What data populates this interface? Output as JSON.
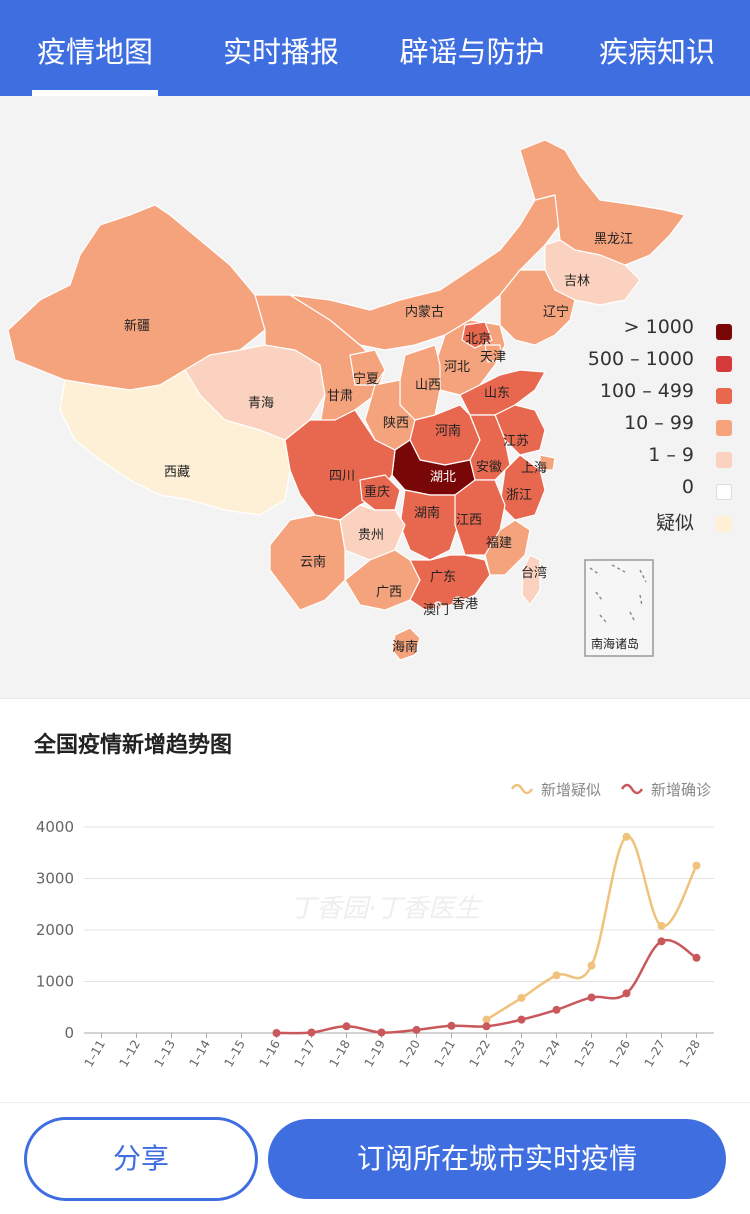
{
  "tabs": [
    {
      "label": "疫情地图",
      "active": true
    },
    {
      "label": "实时播报",
      "active": false
    },
    {
      "label": "辟谣与防护",
      "active": false
    },
    {
      "label": "疾病知识",
      "active": false
    }
  ],
  "map": {
    "provinces": {
      "xinjiang": "新疆",
      "xizang": "西藏",
      "qinghai": "青海",
      "gansu": "甘肃",
      "neimenggu": "内蒙古",
      "heilongjiang": "黑龙江",
      "jilin": "吉林",
      "liaoning": "辽宁",
      "beijing": "北京",
      "tianjin": "天津",
      "hebei": "河北",
      "shanxi": "山西",
      "ningxia": "宁夏",
      "shaanxi": "陕西",
      "shandong": "山东",
      "henan": "河南",
      "jiangsu": "江苏",
      "anhui": "安徽",
      "shanghai": "上海",
      "hubei": "湖北",
      "sichuan": "四川",
      "chongqing": "重庆",
      "zhejiang": "浙江",
      "hunan": "湖南",
      "jiangxi": "江西",
      "guizhou": "贵州",
      "yunnan": "云南",
      "fujian": "福建",
      "guangxi": "广西",
      "guangdong": "广东",
      "taiwan": "台湾",
      "xianggang": "香港",
      "aomen": "澳门",
      "hainan": "海南",
      "nanhai": "南海诸岛"
    },
    "legend": [
      {
        "label": "> 1000",
        "color": "#7a0707"
      },
      {
        "label": "500 – 1000",
        "color": "#d63a3a"
      },
      {
        "label": "100 – 499",
        "color": "#e8684f"
      },
      {
        "label": "10 – 99",
        "color": "#f5a37d"
      },
      {
        "label": "1 – 9",
        "color": "#fbd2c0"
      },
      {
        "label": "0",
        "color": "#ffffff"
      },
      {
        "label": "疑似",
        "color": "#fdf0d6"
      }
    ],
    "colors": {
      "c1000": "#7a0707",
      "c500": "#d63a3a",
      "c100": "#e8684f",
      "c10": "#f5a37d",
      "c1": "#fbd2c0",
      "suspect": "#fdf0d6"
    }
  },
  "chart_data": {
    "type": "line",
    "title": "全国疫情新增趋势图",
    "categories": [
      "1–11",
      "1–12",
      "1–13",
      "1–14",
      "1–15",
      "1–16",
      "1–17",
      "1–18",
      "1–19",
      "1–20",
      "1–21",
      "1–22",
      "1–23",
      "1–24",
      "1–25",
      "1–26",
      "1–27",
      "1–28"
    ],
    "ylim": [
      0,
      4000
    ],
    "yticks": [
      0,
      1000,
      2000,
      3000,
      4000
    ],
    "legend_position": "top-right",
    "series": [
      {
        "name": "新增疑似",
        "color": "#f0c27b",
        "values": [
          null,
          null,
          null,
          null,
          null,
          null,
          null,
          null,
          null,
          null,
          null,
          260,
          680,
          1120,
          1310,
          3810,
          2080,
          3250
        ]
      },
      {
        "name": "新增确诊",
        "color": "#c9585c",
        "values": [
          null,
          null,
          null,
          null,
          null,
          0,
          10,
          130,
          10,
          60,
          140,
          130,
          260,
          450,
          690,
          770,
          1780,
          1460
        ]
      }
    ],
    "watermark": "丁香园·丁香医生"
  },
  "bottom": {
    "share_label": "分享",
    "subscribe_label": "订阅所在城市实时疫情"
  }
}
